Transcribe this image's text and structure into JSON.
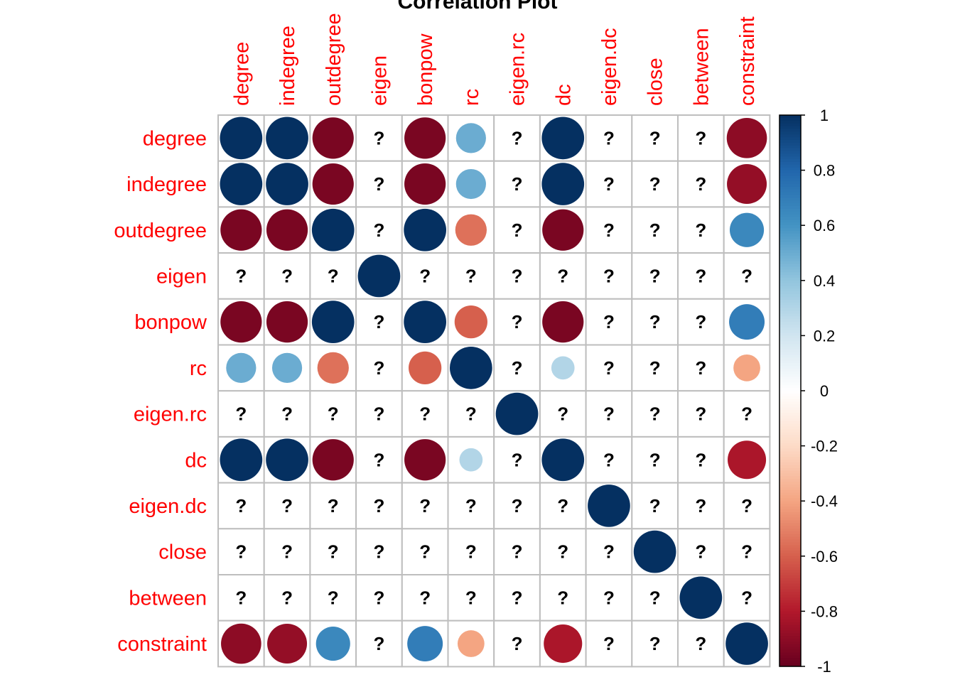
{
  "chart_data": {
    "type": "heatmap",
    "title": "Correlation Plot",
    "variables": [
      "degree",
      "indegree",
      "outdegree",
      "eigen",
      "bonpow",
      "rc",
      "eigen.rc",
      "dc",
      "eigen.dc",
      "close",
      "between",
      "constraint"
    ],
    "missing_symbol": "?",
    "matrix": [
      [
        1,
        1,
        -0.95,
        null,
        -0.95,
        0.5,
        null,
        1,
        null,
        null,
        null,
        -0.9
      ],
      [
        1,
        1,
        -0.95,
        null,
        -0.95,
        0.5,
        null,
        1,
        null,
        null,
        null,
        -0.88
      ],
      [
        -0.95,
        -0.95,
        1,
        null,
        1,
        -0.55,
        null,
        -0.95,
        null,
        null,
        null,
        0.65
      ],
      [
        null,
        null,
        null,
        1,
        null,
        null,
        null,
        null,
        null,
        null,
        null,
        null
      ],
      [
        -0.95,
        -0.95,
        1,
        null,
        1,
        -0.6,
        null,
        -0.95,
        null,
        null,
        null,
        0.7
      ],
      [
        0.5,
        0.5,
        -0.55,
        null,
        -0.6,
        1,
        null,
        0.3,
        null,
        null,
        null,
        -0.4
      ],
      [
        null,
        null,
        null,
        null,
        null,
        null,
        1,
        null,
        null,
        null,
        null,
        null
      ],
      [
        1,
        1,
        -0.95,
        null,
        -0.95,
        0.3,
        null,
        1,
        null,
        null,
        null,
        -0.82
      ],
      [
        null,
        null,
        null,
        null,
        null,
        null,
        null,
        null,
        1,
        null,
        null,
        null
      ],
      [
        null,
        null,
        null,
        null,
        null,
        null,
        null,
        null,
        null,
        1,
        null,
        null
      ],
      [
        null,
        null,
        null,
        null,
        null,
        null,
        null,
        null,
        null,
        null,
        1,
        null
      ],
      [
        -0.9,
        -0.88,
        0.65,
        null,
        0.7,
        -0.4,
        null,
        -0.82,
        null,
        null,
        null,
        1
      ]
    ],
    "colorbar": {
      "range": [
        -1,
        1
      ],
      "ticks": [
        "-1",
        "-0.8",
        "-0.6",
        "-0.4",
        "-0.2",
        "0",
        "0.2",
        "0.4",
        "0.6",
        "0.8",
        "1"
      ]
    },
    "colors": {
      "label": "#ff0000",
      "grid": "#bebebe",
      "palette": [
        "#67001F",
        "#B2182B",
        "#D6604D",
        "#F4A582",
        "#FDDBC7",
        "#FFFFFF",
        "#D1E5F0",
        "#92C5DE",
        "#4393C3",
        "#2166AC",
        "#053061"
      ]
    }
  }
}
